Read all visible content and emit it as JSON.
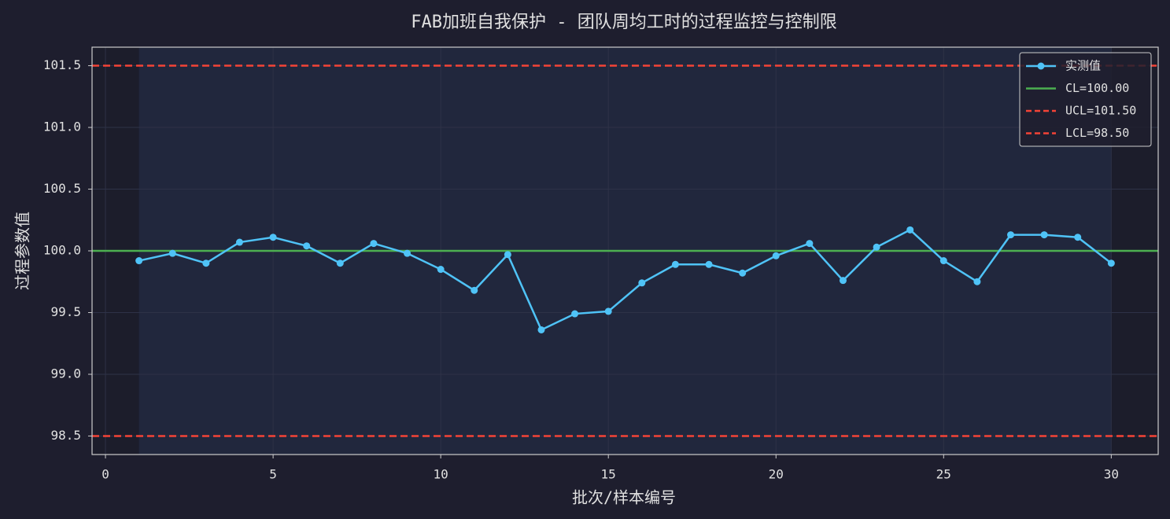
{
  "chart_data": {
    "type": "line",
    "title": "FAB加班自我保护 - 团队周均工时的过程监控与控制限",
    "x_label": "批次/样本编号",
    "y_label": "过程参数值",
    "x": [
      1,
      2,
      3,
      4,
      5,
      6,
      7,
      8,
      9,
      10,
      11,
      12,
      13,
      14,
      15,
      16,
      17,
      18,
      19,
      20,
      21,
      22,
      23,
      24,
      25,
      26,
      27,
      28,
      29,
      30
    ],
    "series": [
      {
        "name": "实测值",
        "color": "#4fc3f7",
        "values": [
          99.92,
          99.98,
          99.9,
          100.07,
          100.11,
          100.04,
          99.9,
          100.06,
          99.98,
          99.85,
          99.68,
          99.97,
          99.36,
          99.49,
          99.51,
          99.74,
          99.89,
          99.89,
          99.82,
          99.96,
          100.06,
          99.76,
          100.03,
          100.17,
          99.92,
          99.75,
          100.13,
          100.13,
          100.11,
          99.9
        ]
      }
    ],
    "control_lines": [
      {
        "name": "CL=100.00",
        "value": 100,
        "color": "#4caf50",
        "style": "solid"
      },
      {
        "name": "UCL=101.50",
        "value": 101.5,
        "color": "#f44336",
        "style": "dashed"
      },
      {
        "name": "LCL=98.50",
        "value": 98.5,
        "color": "#f44336",
        "style": "dashed"
      }
    ],
    "xlim": [
      -0.4,
      31.4
    ],
    "ylim": [
      98.35,
      101.65
    ],
    "xticks": [
      0,
      5,
      10,
      15,
      20,
      25,
      30
    ],
    "yticks": [
      98.5,
      {
        "value": 99,
        "label": "99.0"
      },
      99.5,
      {
        "value": 100,
        "label": "100.0"
      },
      100.5,
      {
        "value": 101,
        "label": "101.0"
      },
      101.5
    ],
    "grid": true,
    "legend": "upper right"
  }
}
